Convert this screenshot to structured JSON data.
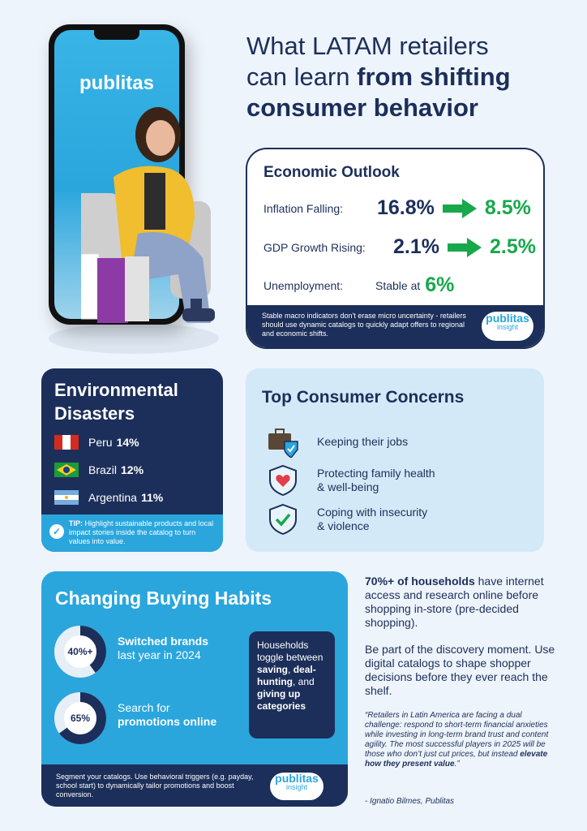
{
  "title": {
    "line1": "What LATAM retailers",
    "line2_plain": "can learn",
    "line2_bold": "from shifting",
    "line3_bold": "consumer behavior"
  },
  "phone": {
    "brand": "publitas"
  },
  "economic": {
    "heading": "Economic Outlook",
    "inflation": {
      "label": "Inflation Falling:",
      "from": "16.8%",
      "to": "8.5%"
    },
    "gdp": {
      "label": "GDP Growth Rising:",
      "from": "2.1%",
      "to": "2.5%"
    },
    "unemployment": {
      "label": "Unemployment:",
      "prefix": "Stable at",
      "value": "6%"
    },
    "footer": "Stable macro indicators don't erase micro uncertainty - retailers should use dynamic catalogs to quickly adapt offers to regional and economic shifts.",
    "badge": {
      "brand": "publitas",
      "sub": "insight"
    }
  },
  "environmental": {
    "heading_line1": "Environmental",
    "heading_line2": "Disasters",
    "rows": [
      {
        "country": "Peru",
        "value": "14%"
      },
      {
        "country": "Brazil",
        "value": "12%"
      },
      {
        "country": "Argentina",
        "value": "11%"
      }
    ],
    "tip_label": "TIP:",
    "tip_text": "Highlight sustainable products and local impact stories inside the catalog to turn values into value."
  },
  "concerns": {
    "heading": "Top Consumer Concerns",
    "items": [
      {
        "line1": "Keeping their jobs",
        "line2": ""
      },
      {
        "line1": "Protecting family health",
        "line2": "& well-being"
      },
      {
        "line1": "Coping with insecurity",
        "line2": "& violence"
      }
    ]
  },
  "habits": {
    "heading": "Changing Buying Habits",
    "stats": [
      {
        "percent": 40,
        "label": "40%+",
        "line1": "Switched brands",
        "line2": "last year in 2024"
      },
      {
        "percent": 65,
        "label": "65%",
        "line1": "Search for",
        "line2": "promotions online"
      }
    ],
    "households": {
      "t1": "Households toggle between",
      "b1": "saving",
      "t2": ",",
      "b2": "deal-hunting",
      "t3": ", and",
      "b3": "giving up categories"
    },
    "footer": "Segment your catalogs. Use behavioral triggers (e.g. payday, school start) to dynamically tailor promotions and boost conversion.",
    "badge": {
      "brand": "publitas",
      "sub": "insight"
    }
  },
  "right": {
    "p1_bold": "70%+ of households",
    "p1_rest": "have internet access and research online before shopping in-store (pre-decided shopping).",
    "p2": "Be part of the discovery moment. Use digital catalogs to shape shopper decisions before they ever reach the shelf.",
    "quote_main": "“Retailers in Latin America are facing a dual challenge: respond to short-term financial anxieties while investing in long-term brand trust and content agility. The most successful players in 2025 will be those who don’t just cut prices, but instead",
    "quote_bold": "elevate how they present value",
    "quote_end": ".”",
    "cite": "- Ignatio Bilmes, Publitas"
  },
  "colors": {
    "navy": "#1c2f5a",
    "blue": "#2aa6dd",
    "green": "#17a84b",
    "light": "#d4e9f7"
  }
}
